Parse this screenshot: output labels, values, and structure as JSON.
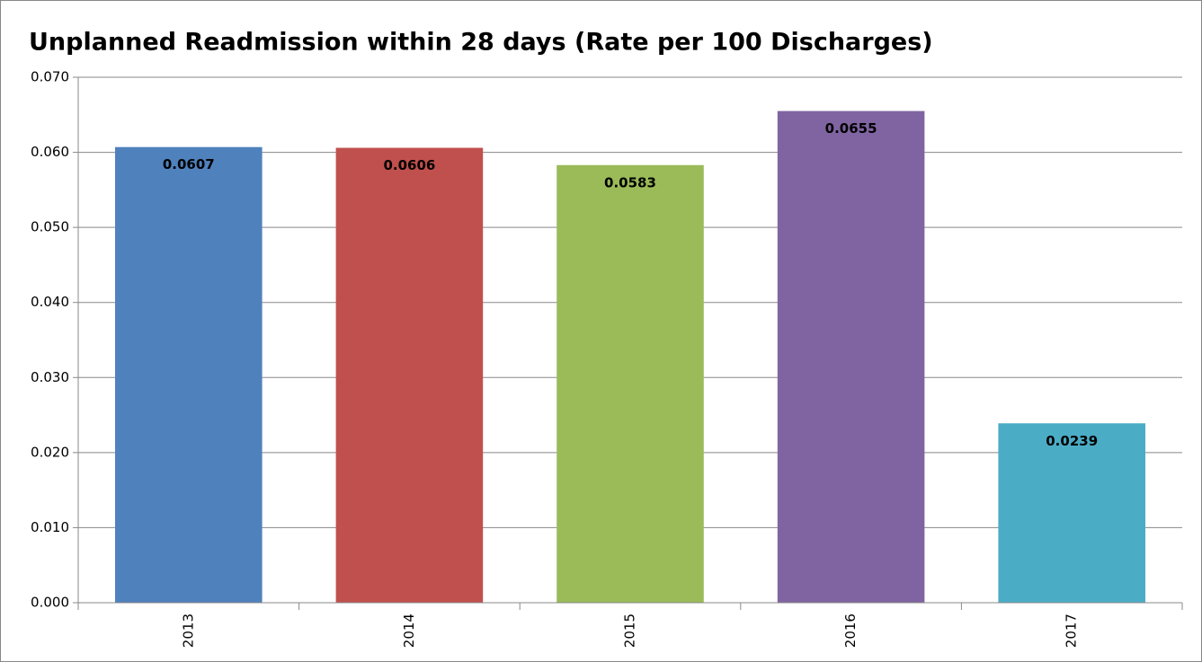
{
  "chart_data": {
    "type": "bar",
    "title": "Unplanned Readmission within 28 days (Rate per 100 Discharges)",
    "categories": [
      "2013",
      "2014",
      "2015",
      "2016",
      "2017"
    ],
    "values": [
      0.0607,
      0.0606,
      0.0583,
      0.0655,
      0.0239
    ],
    "colors": [
      "#4f81bd",
      "#c0504d",
      "#9bbb59",
      "#8064a2",
      "#4bacc6"
    ],
    "ylim": [
      0,
      0.07
    ],
    "yticks": [
      {
        "value": 0,
        "label": "0.000"
      },
      {
        "value": 0.01,
        "label": "0.010"
      },
      {
        "value": 0.02,
        "label": "0.020"
      },
      {
        "value": 0.03,
        "label": "0.030"
      },
      {
        "value": 0.04,
        "label": "0.040"
      },
      {
        "value": 0.05,
        "label": "0.050"
      },
      {
        "value": 0.06,
        "label": "0.060"
      },
      {
        "value": 0.07,
        "label": "0.070"
      }
    ],
    "grid": true
  }
}
